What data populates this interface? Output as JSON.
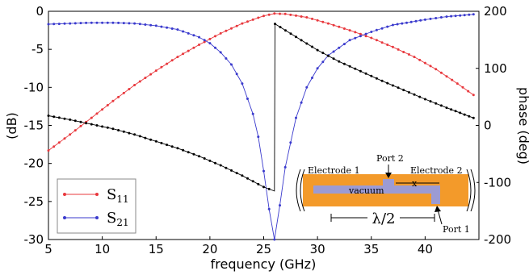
{
  "chart_data": {
    "type": "line",
    "xlabel": "frequency (GHz)",
    "ylabel_left": "(dB)",
    "ylabel_right": "phase (deg)",
    "xlim": [
      5,
      45
    ],
    "ylim_left": [
      -30,
      0
    ],
    "ylim_right": [
      -200,
      200
    ],
    "x_ticks": [
      "5",
      "10",
      "15",
      "20",
      "25",
      "30",
      "35",
      "40"
    ],
    "y_left_ticks": [
      "0",
      "-5",
      "-10",
      "-15",
      "-20",
      "-25",
      "-30"
    ],
    "y_right_ticks": [
      "200",
      "100",
      "0",
      "-100",
      "-200"
    ],
    "grid": false,
    "legend_position": "lower-left",
    "legend": [
      {
        "label": "S",
        "subscript": "11",
        "color": "#e8383d"
      },
      {
        "label": "S",
        "subscript": "21",
        "color": "#3a3acd"
      }
    ],
    "series": [
      {
        "name": "S11",
        "axis": "left",
        "color": "#e8383d",
        "x": [
          5,
          7,
          9,
          11,
          13,
          15,
          17,
          19,
          21,
          23,
          25,
          26,
          27,
          29,
          31,
          33,
          35,
          37,
          39,
          41,
          43,
          44.5
        ],
        "y": [
          -18.3,
          -16.2,
          -14.0,
          -11.8,
          -9.7,
          -7.8,
          -6.0,
          -4.4,
          -2.9,
          -1.6,
          -0.6,
          -0.3,
          -0.35,
          -0.8,
          -1.6,
          -2.5,
          -3.5,
          -4.7,
          -6.0,
          -7.6,
          -9.5,
          -11.0
        ]
      },
      {
        "name": "S21",
        "axis": "left",
        "color": "#3a3acd",
        "x": [
          5,
          7,
          9,
          11,
          13,
          15,
          17,
          19,
          20,
          21,
          22,
          23,
          24,
          24.5,
          25,
          25.5,
          26,
          26.5,
          27,
          28,
          29,
          30,
          31,
          33,
          35,
          37,
          40,
          42,
          44.5
        ],
        "y": [
          -1.7,
          -1.6,
          -1.5,
          -1.5,
          -1.6,
          -1.9,
          -2.4,
          -3.4,
          -4.2,
          -5.4,
          -7.0,
          -9.5,
          -13.5,
          -16.5,
          -21.0,
          -26.0,
          -30.0,
          -25.5,
          -20.5,
          -14.0,
          -10.0,
          -7.5,
          -5.8,
          -3.8,
          -2.7,
          -1.8,
          -1.1,
          -0.7,
          -0.4
        ]
      },
      {
        "name": "S21 phase",
        "axis": "right",
        "color": "#000000",
        "x": [
          5,
          7,
          9,
          11,
          13,
          15,
          17,
          19,
          21,
          23,
          25,
          26,
          26.05,
          28,
          30,
          32,
          34,
          36,
          38,
          40,
          42,
          44.5
        ],
        "y": [
          17,
          10,
          2,
          -6,
          -16,
          -28,
          -40,
          -54,
          -70,
          -88,
          -108,
          -115,
          178,
          155,
          132,
          112,
          95,
          78,
          62,
          46,
          31,
          13
        ]
      }
    ],
    "inset": {
      "port2": "Port 2",
      "port1": "Port 1",
      "electrode1": "Electrode 1",
      "electrode2": "Electrode 2",
      "vacuum": "vacuum",
      "x_mark": "x",
      "lambda_label": "λ/2"
    }
  }
}
